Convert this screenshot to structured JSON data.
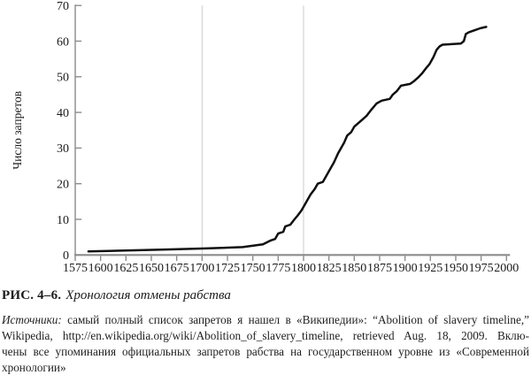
{
  "caption": {
    "label": "РИС. 4–6.",
    "title": "Хронология отмены рабства"
  },
  "sources": {
    "lead": "Источники:",
    "line1_rest": " самый полный список запретов я нашел в «Википедии»: “Abolition of slavery timeline,”",
    "line2": "Wikipedia, http://en.wikipedia.org/wiki/Abolition_of_slavery_timeline, retrieved Aug. 18, 2009. Вклю-",
    "line3": "чены все упоминания официальных запретов рабства на государственном уровне из «Современной",
    "line4": "хронологии»"
  },
  "chart_data": {
    "type": "line",
    "title": "",
    "xlabel": "",
    "ylabel": "Число запретов",
    "xlim": [
      1575,
      2000
    ],
    "ylim": [
      0,
      70
    ],
    "x_ticks": [
      1575,
      1600,
      1625,
      1650,
      1675,
      1700,
      1725,
      1750,
      1775,
      1800,
      1825,
      1850,
      1875,
      1900,
      1925,
      1950,
      1975,
      2000
    ],
    "y_ticks": [
      0,
      10,
      20,
      30,
      40,
      50,
      60,
      70
    ],
    "grid_x": [
      1700,
      1800
    ],
    "grid": "vertical-reference-lines-only",
    "legend_position": "none",
    "colors": {
      "line": "#101010",
      "axis": "#8c8c8c",
      "grid": "#cbcbcb",
      "text": "#1b1b1b"
    },
    "points": [
      [
        1588,
        1
      ],
      [
        1660,
        1.5
      ],
      [
        1700,
        1.8
      ],
      [
        1740,
        2.2
      ],
      [
        1760,
        3
      ],
      [
        1767,
        4
      ],
      [
        1772,
        4.5
      ],
      [
        1775,
        6
      ],
      [
        1780,
        6.5
      ],
      [
        1782,
        8
      ],
      [
        1787,
        8.5
      ],
      [
        1791,
        10
      ],
      [
        1794,
        11
      ],
      [
        1798,
        12.5
      ],
      [
        1800,
        13.5
      ],
      [
        1803,
        15
      ],
      [
        1807,
        17
      ],
      [
        1811,
        18.5
      ],
      [
        1814,
        20
      ],
      [
        1819,
        20.5
      ],
      [
        1823,
        22.5
      ],
      [
        1827,
        24.5
      ],
      [
        1830,
        26
      ],
      [
        1834,
        28.5
      ],
      [
        1837,
        30
      ],
      [
        1840,
        31.5
      ],
      [
        1843,
        33.5
      ],
      [
        1847,
        34.5
      ],
      [
        1850,
        36
      ],
      [
        1854,
        37
      ],
      [
        1858,
        38
      ],
      [
        1862,
        39
      ],
      [
        1866,
        40.5
      ],
      [
        1869,
        41.5
      ],
      [
        1872,
        42.5
      ],
      [
        1877,
        43.3
      ],
      [
        1885,
        43.8
      ],
      [
        1888,
        45
      ],
      [
        1892,
        46
      ],
      [
        1896,
        47.5
      ],
      [
        1905,
        48
      ],
      [
        1909,
        48.8
      ],
      [
        1913,
        49.8
      ],
      [
        1917,
        51
      ],
      [
        1921,
        52.5
      ],
      [
        1924,
        53.5
      ],
      [
        1928,
        55.5
      ],
      [
        1931,
        57.5
      ],
      [
        1934,
        58.5
      ],
      [
        1937,
        59
      ],
      [
        1955,
        59.3
      ],
      [
        1958,
        60
      ],
      [
        1960,
        62
      ],
      [
        1963,
        62.5
      ],
      [
        1968,
        63
      ],
      [
        1974,
        63.6
      ],
      [
        1980,
        64
      ]
    ]
  }
}
